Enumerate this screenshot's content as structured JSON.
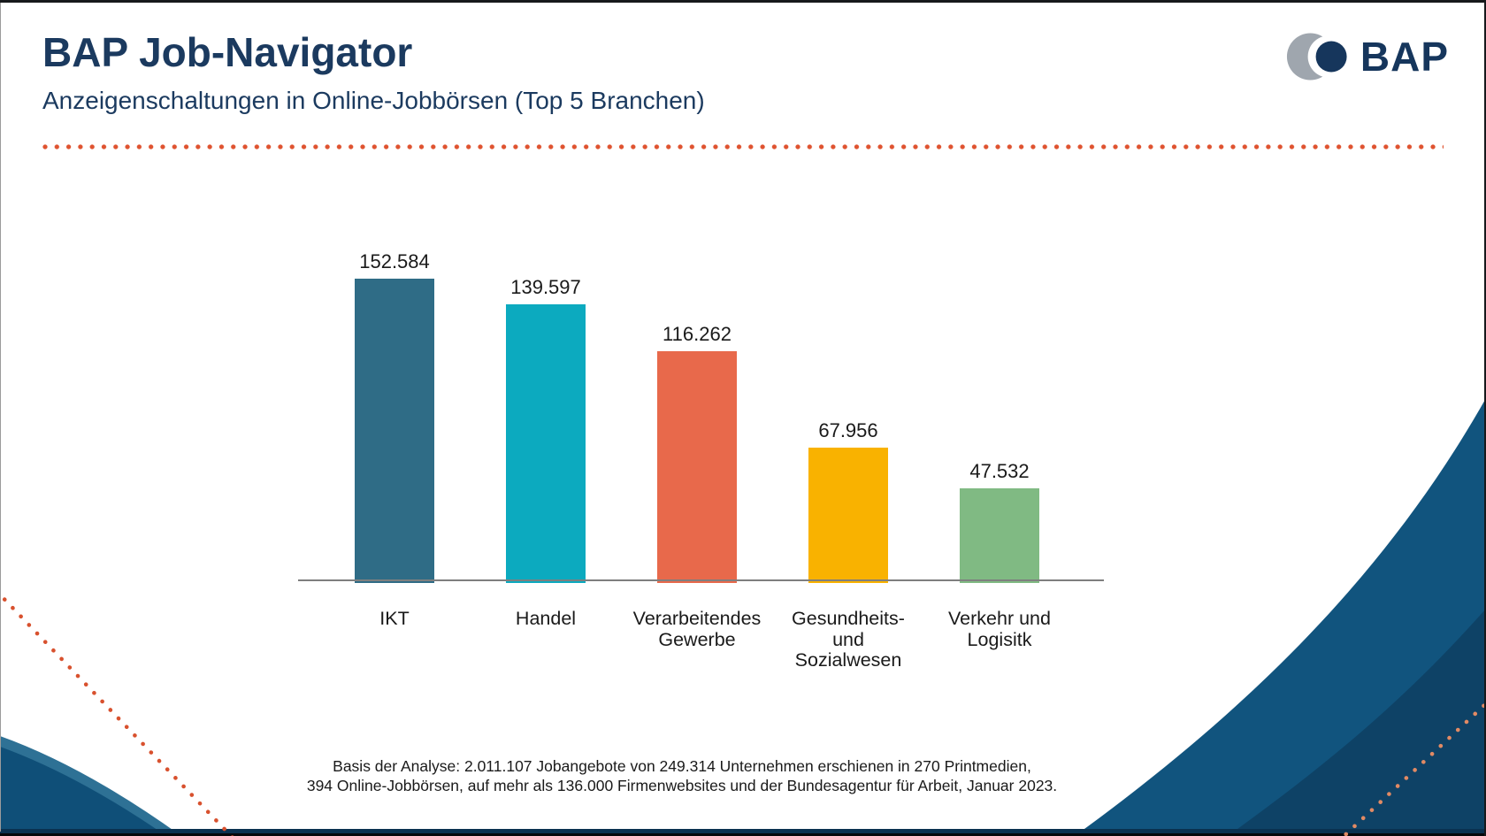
{
  "header": {
    "title": "BAP Job-Navigator",
    "subtitle": "Anzeigenschaltungen in Online-Jobbörsen (Top 5 Branchen)"
  },
  "logo": {
    "text": "BAP",
    "mark": "bap-crescent-circle-logo"
  },
  "chart_data": {
    "type": "bar",
    "title": "Anzeigenschaltungen in Online-Jobbörsen (Top 5 Branchen)",
    "categories": [
      "IKT",
      "Handel",
      "Verarbeitendes\nGewerbe",
      "Gesundheits-\nund\nSozialwesen",
      "Verkehr und\nLogisitk"
    ],
    "values": [
      152584,
      139597,
      116262,
      67956,
      47532
    ],
    "value_labels": [
      "152.584",
      "139.597",
      "116.262",
      "67.956",
      "47.532"
    ],
    "bar_colors": [
      "#2f6c86",
      "#0caabf",
      "#e8694b",
      "#f9b200",
      "#80ba83"
    ],
    "xlabel": "",
    "ylabel": "",
    "ylim": [
      0,
      152584
    ],
    "grid": false,
    "legend": null,
    "value_label_position": "above-bar",
    "axis_line_color": "#7f7f7f"
  },
  "footer": {
    "line1": "Basis der Analyse: 2.011.107 Jobangebote von 249.314 Unternehmen erschienen in 270 Printmedien,",
    "line2": "394 Online-Jobbörsen, auf mehr als 136.000 Firmenwebsites und der Bundesagentur für Arbeit, Januar 2023."
  },
  "colors": {
    "brand_navy": "#1b3a5f",
    "divider_dots": "#df5330",
    "corner_dots_left": "#d8512e",
    "corner_dots_right": "#e18a64",
    "wave_light": "#11547e",
    "wave_dark": "#0e4266",
    "corner_left_main": "#0f4f78",
    "corner_left_edge": "#2e7195",
    "bottom_strip": "#0a3150",
    "logo_gray": "#9fa6ae",
    "logo_navy": "#16365c"
  }
}
